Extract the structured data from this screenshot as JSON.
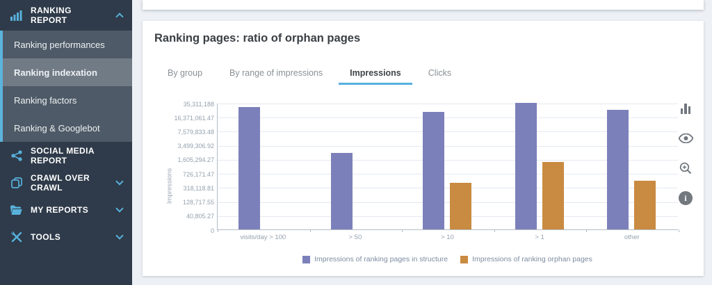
{
  "colors": {
    "sidebar_bg": "#2f3b4a",
    "submenu_bg": "#4e5a67",
    "submenu_active_bg": "#717b86",
    "accent_blue": "#5cb3dc",
    "tab_underline": "#56b0e0",
    "series_structure": "#7c80ba",
    "series_orphan": "#c98a41",
    "toolbar_icon_gray": "#70777e"
  },
  "sidebar": {
    "ranking_report": {
      "label": "RANKING REPORT",
      "icon": "bar-chart-icon",
      "chevron": "up"
    },
    "submenu": [
      {
        "label": "Ranking performances",
        "active": false
      },
      {
        "label": "Ranking indexation",
        "active": true
      },
      {
        "label": "Ranking factors",
        "active": false
      },
      {
        "label": "Ranking & Googlebot",
        "active": false
      }
    ],
    "sections": [
      {
        "label": "SOCIAL MEDIA REPORT",
        "icon": "share-icon",
        "chevron": null
      },
      {
        "label": "CRAWL OVER CRAWL",
        "icon": "copy-pages-icon",
        "chevron": "down"
      },
      {
        "label": "MY REPORTS",
        "icon": "folder-icon",
        "chevron": "down"
      },
      {
        "label": "TOOLS",
        "icon": "tools-icon",
        "chevron": "down"
      }
    ]
  },
  "main": {
    "title": "Ranking pages: ratio of orphan pages",
    "tabs": [
      {
        "label": "By group",
        "active": false
      },
      {
        "label": "By range of impressions",
        "active": false
      },
      {
        "label": "Impressions",
        "active": true
      },
      {
        "label": "Clicks",
        "active": false
      }
    ],
    "toolbar_icons": [
      "bar-chart-icon",
      "eye-icon",
      "zoom-in-icon",
      "info-icon"
    ]
  },
  "chart_data": {
    "type": "bar",
    "ylabel": "Impressions",
    "y_scale": "log-like (equal spacing between listed ticks)",
    "grid": true,
    "legend_position": "bottom-center",
    "categories": [
      "visits/day > 100",
      "> 50",
      "> 10",
      "> 1",
      "other"
    ],
    "y_ticks": [
      {
        "label": "35,311,188",
        "value": 35311188
      },
      {
        "label": "16,371,061.47",
        "value": 16371061.47
      },
      {
        "label": "7,579,833.48",
        "value": 7579833.48
      },
      {
        "label": "3,499,306.92",
        "value": 3499306.92
      },
      {
        "label": "1,605,294.27",
        "value": 1605294.27
      },
      {
        "label": "726,171.47",
        "value": 726171.47
      },
      {
        "label": "318,118.81",
        "value": 318118.81
      },
      {
        "label": "128,717.55",
        "value": 128717.55
      },
      {
        "label": "40,805.27",
        "value": 40805.27
      },
      {
        "label": "0",
        "value": 0
      }
    ],
    "series": [
      {
        "name": "Impressions of ranking pages in structure",
        "color": "#7c80ba",
        "values": [
          28100000,
          2250000,
          21800000,
          35311188,
          24100000
        ]
      },
      {
        "name": "Impressions of ranking orphan pages",
        "color": "#c98a41",
        "values": [
          null,
          null,
          420000,
          1360000,
          470000
        ]
      }
    ]
  }
}
